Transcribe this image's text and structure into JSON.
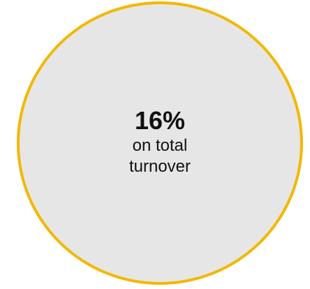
{
  "badge": {
    "value": "16%",
    "caption_line1": "on total",
    "caption_line2": "turnover",
    "fill_color": "#e6e6e6",
    "border_color": "#f2b800"
  }
}
